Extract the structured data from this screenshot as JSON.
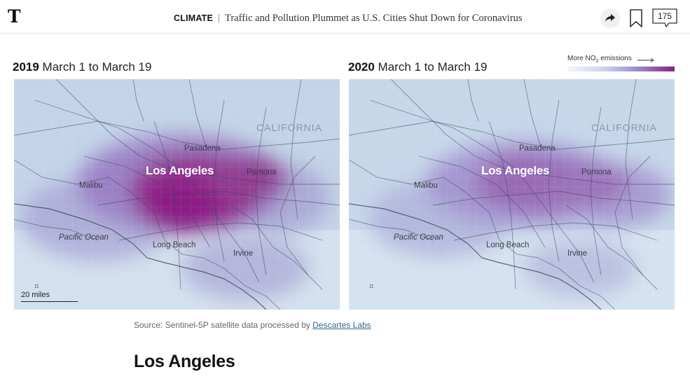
{
  "header": {
    "logo": "T",
    "section": "CLIMATE",
    "headline": "Traffic and Pollution Plummet as U.S. Cities Shut Down for Coronavirus",
    "comment_count": "175"
  },
  "legend": {
    "label_prefix": "More NO",
    "label_sub": "2",
    "label_suffix": " emissions"
  },
  "maps": [
    {
      "year": "2019",
      "range": " March 1 to March 19",
      "labels": {
        "los_angeles": "Los Angeles",
        "pasadena": "Pasadena",
        "pomona": "Pomona",
        "malibu": "Malibu",
        "california": "CALIFORNIA",
        "pacific": "Pacific Ocean",
        "long_beach": "Long Beach",
        "irvine": "Irvine"
      },
      "scale": "20 miles"
    },
    {
      "year": "2020",
      "range": " March 1 to March 19",
      "labels": {
        "los_angeles": "Los Angeles",
        "pasadena": "Pasadena",
        "pomona": "Pomona",
        "malibu": "Malibu",
        "california": "CALIFORNIA",
        "pacific": "Pacific Ocean",
        "long_beach": "Long Beach",
        "irvine": "Irvine"
      }
    }
  ],
  "source": {
    "text": "Source: Sentinel-5P satellite data processed by ",
    "link": "Descartes Labs"
  },
  "section_heading": "Los Angeles",
  "colors": {
    "no2_high": "#8a1f86",
    "no2_low": "#c5d6e9",
    "link": "#326891"
  }
}
